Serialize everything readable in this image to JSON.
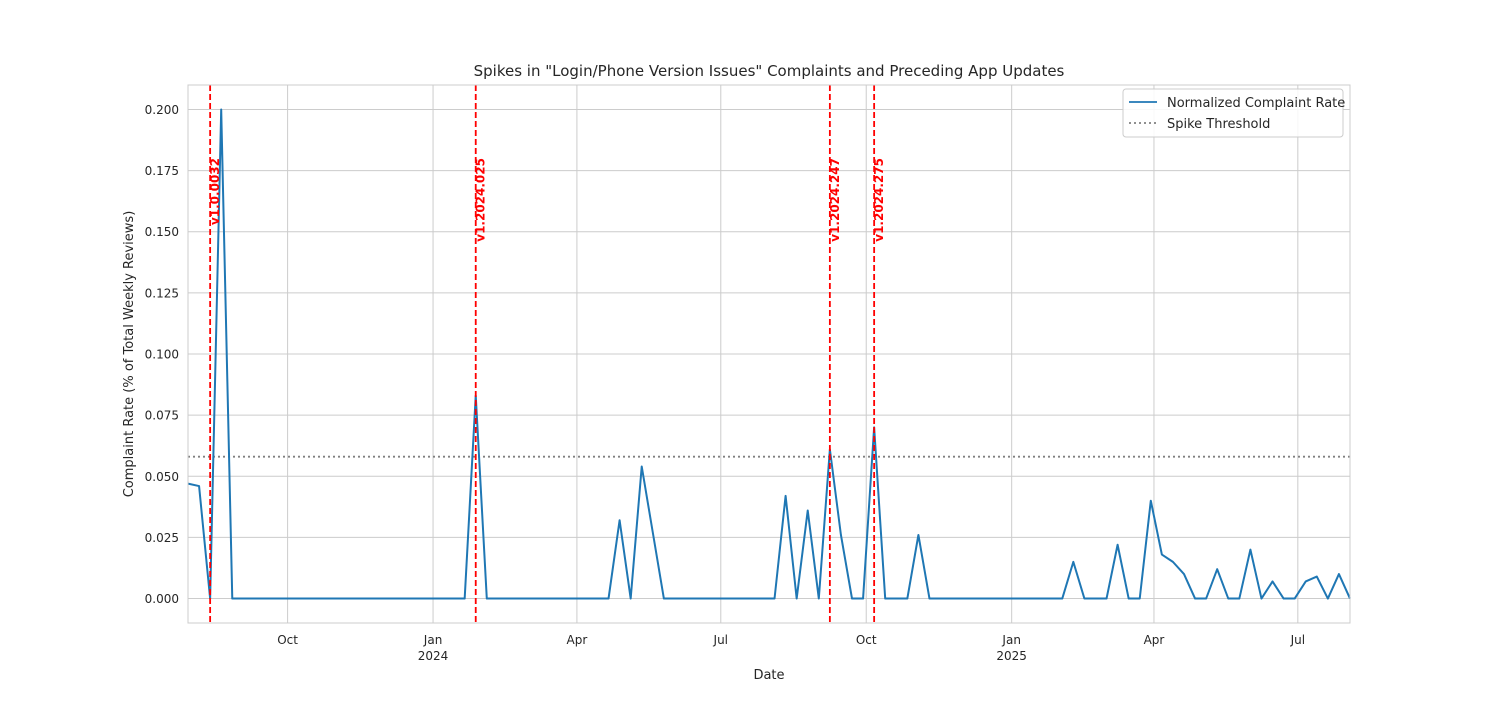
{
  "chart_data": {
    "type": "line",
    "title": "Spikes in \"Login/Phone Version Issues\" Complaints and Preceding App Updates",
    "xlabel": "Date",
    "ylabel": "Complaint Rate (% of Total Weekly Reviews)",
    "x_range": [
      "2023-07-30",
      "2025-08-03"
    ],
    "ylim": [
      -0.01,
      0.21
    ],
    "y_ticks": [
      "0.000",
      "0.025",
      "0.050",
      "0.075",
      "0.100",
      "0.125",
      "0.150",
      "0.175",
      "0.200"
    ],
    "x_ticks": [
      {
        "date": "2023-10-01",
        "label": "Oct",
        "sublabel": ""
      },
      {
        "date": "2024-01-01",
        "label": "Jan",
        "sublabel": "2024"
      },
      {
        "date": "2024-04-01",
        "label": "Apr",
        "sublabel": ""
      },
      {
        "date": "2024-07-01",
        "label": "Jul",
        "sublabel": ""
      },
      {
        "date": "2024-10-01",
        "label": "Oct",
        "sublabel": ""
      },
      {
        "date": "2025-01-01",
        "label": "Jan",
        "sublabel": "2025"
      },
      {
        "date": "2025-04-01",
        "label": "Apr",
        "sublabel": ""
      },
      {
        "date": "2025-07-01",
        "label": "Jul",
        "sublabel": ""
      }
    ],
    "grid": true,
    "legend_position": "top-right",
    "colors": {
      "series": "#1f77b4",
      "threshold": "#808080",
      "updates": "#ff0000",
      "grid": "#cccccc",
      "axes": "#cccccc"
    },
    "series": [
      {
        "name": "Normalized Complaint Rate",
        "points": [
          [
            "2023-07-30",
            0.047
          ],
          [
            "2023-08-06",
            0.046
          ],
          [
            "2023-08-13",
            0.0
          ],
          [
            "2023-08-20",
            0.2
          ],
          [
            "2023-08-27",
            0.0
          ],
          [
            "2024-01-21",
            0.0
          ],
          [
            "2024-01-28",
            0.083
          ],
          [
            "2024-02-04",
            0.0
          ],
          [
            "2024-04-21",
            0.0
          ],
          [
            "2024-04-28",
            0.032
          ],
          [
            "2024-05-05",
            0.0
          ],
          [
            "2024-05-12",
            0.054
          ],
          [
            "2024-05-19",
            0.027
          ],
          [
            "2024-05-26",
            0.0
          ],
          [
            "2024-08-04",
            0.0
          ],
          [
            "2024-08-11",
            0.042
          ],
          [
            "2024-08-18",
            0.0
          ],
          [
            "2024-08-25",
            0.036
          ],
          [
            "2024-09-01",
            0.0
          ],
          [
            "2024-09-08",
            0.061
          ],
          [
            "2024-09-15",
            0.026
          ],
          [
            "2024-09-22",
            0.0
          ],
          [
            "2024-09-29",
            0.0
          ],
          [
            "2024-10-06",
            0.07
          ],
          [
            "2024-10-13",
            0.0
          ],
          [
            "2024-10-27",
            0.0
          ],
          [
            "2024-11-03",
            0.026
          ],
          [
            "2024-11-10",
            0.0
          ],
          [
            "2025-02-02",
            0.0
          ],
          [
            "2025-02-09",
            0.015
          ],
          [
            "2025-02-16",
            0.0
          ],
          [
            "2025-03-02",
            0.0
          ],
          [
            "2025-03-09",
            0.022
          ],
          [
            "2025-03-16",
            0.0
          ],
          [
            "2025-03-23",
            0.0
          ],
          [
            "2025-03-30",
            0.04
          ],
          [
            "2025-04-06",
            0.018
          ],
          [
            "2025-04-13",
            0.015
          ],
          [
            "2025-04-20",
            0.01
          ],
          [
            "2025-04-27",
            0.0
          ],
          [
            "2025-05-04",
            0.0
          ],
          [
            "2025-05-11",
            0.012
          ],
          [
            "2025-05-18",
            0.0
          ],
          [
            "2025-05-25",
            0.0
          ],
          [
            "2025-06-01",
            0.02
          ],
          [
            "2025-06-08",
            0.0
          ],
          [
            "2025-06-15",
            0.007
          ],
          [
            "2025-06-22",
            0.0
          ],
          [
            "2025-06-29",
            0.0
          ],
          [
            "2025-07-06",
            0.007
          ],
          [
            "2025-07-13",
            0.009
          ],
          [
            "2025-07-20",
            0.0
          ],
          [
            "2025-07-27",
            0.01
          ],
          [
            "2025-08-03",
            0.0
          ]
        ]
      }
    ],
    "threshold": {
      "name": "Spike Threshold",
      "value": 0.058
    },
    "updates": [
      {
        "date": "2023-08-13",
        "label": "v1.0.0032"
      },
      {
        "date": "2024-01-28",
        "label": "v1.2024.025"
      },
      {
        "date": "2024-09-08",
        "label": "v1.2024.247"
      },
      {
        "date": "2024-10-06",
        "label": "v1.2024.275"
      }
    ]
  }
}
